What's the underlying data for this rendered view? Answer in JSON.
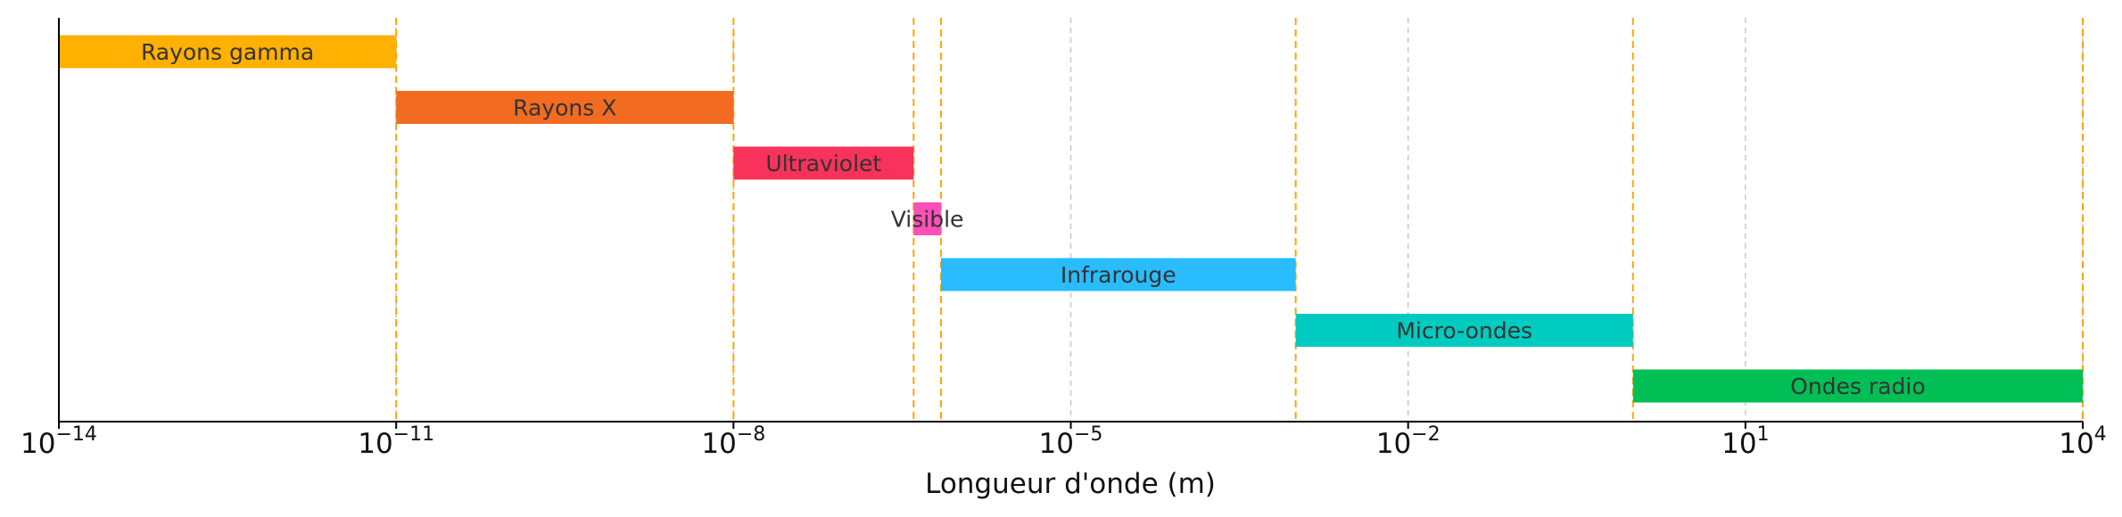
{
  "chart_data": {
    "type": "bar",
    "orientation": "horizontal",
    "x_scale": "log",
    "xlabel": "Longueur d'onde (m)",
    "xlim": [
      1e-14,
      10000
    ],
    "x_ticks": [
      {
        "base": "10",
        "exp": "−14",
        "value": 1e-14
      },
      {
        "base": "10",
        "exp": "−11",
        "value": 1e-11
      },
      {
        "base": "10",
        "exp": "−8",
        "value": 1e-08
      },
      {
        "base": "10",
        "exp": "−5",
        "value": 1e-05
      },
      {
        "base": "10",
        "exp": "−2",
        "value": 0.01
      },
      {
        "base": "10",
        "exp": "1",
        "value": 10
      },
      {
        "base": "10",
        "exp": "4",
        "value": 10000
      }
    ],
    "grid": "vertical dashed at major ticks",
    "bands": [
      {
        "label": "Rayons gamma",
        "start": 1e-14,
        "end": 1e-11,
        "color": "#FFB000"
      },
      {
        "label": "Rayons X",
        "start": 1e-11,
        "end": 1e-08,
        "color": "#F26B21"
      },
      {
        "label": "Ultraviolet",
        "start": 1e-08,
        "end": 4e-07,
        "color": "#F8325A"
      },
      {
        "label": "Visible",
        "start": 4e-07,
        "end": 7e-07,
        "color": "#FF4FB8"
      },
      {
        "label": "Infrarouge",
        "start": 7e-07,
        "end": 0.001,
        "color": "#29BCFF"
      },
      {
        "label": "Micro-ondes",
        "start": 0.001,
        "end": 1,
        "color": "#00CBC0"
      },
      {
        "label": "Ondes radio",
        "start": 1,
        "end": 10000,
        "color": "#00BF55"
      }
    ],
    "boundary_line_color": "#FFA500",
    "grid_color": "#C8C8C8"
  }
}
